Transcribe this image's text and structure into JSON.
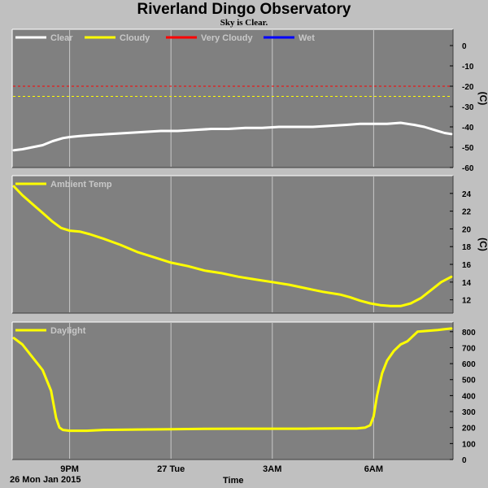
{
  "header": {
    "title": "Riverland Dingo Observatory",
    "subtitle": "Sky is Clear."
  },
  "footer": {
    "date_label": "26 Mon Jan 2015",
    "time_axis_label": "Time"
  },
  "colors": {
    "panel_bg": "#808080",
    "grid": "#c8c8c8",
    "clear": "#ffffff",
    "cloudy": "#ffff00",
    "very_cloudy": "#ff0000",
    "wet": "#0000ff"
  },
  "chart_data": [
    {
      "type": "line",
      "panel": "sky",
      "legend": [
        "Clear",
        "Cloudy",
        "Very Cloudy",
        "Wet"
      ],
      "ylabel": "(C)",
      "ylim": [
        -60,
        8
      ],
      "yticks": [
        0,
        -10,
        -20,
        -30,
        -40,
        -50,
        -60
      ],
      "xlim": [
        19.3,
        32.35
      ],
      "x_gridlines": [
        21,
        24,
        27,
        30
      ],
      "thresholds": [
        {
          "name": "Very Cloudy",
          "value": -20
        },
        {
          "name": "Cloudy",
          "value": -25
        }
      ],
      "series": [
        {
          "name": "Clear",
          "x": [
            19.35,
            19.6,
            19.9,
            20.2,
            20.5,
            20.8,
            21.0,
            21.3,
            21.7,
            22.2,
            22.7,
            23.2,
            23.7,
            24.2,
            24.7,
            25.2,
            25.7,
            26.2,
            26.7,
            27.2,
            27.7,
            28.2,
            28.7,
            29.2,
            29.6,
            30.0,
            30.4,
            30.8,
            31.2,
            31.5,
            31.8,
            32.1,
            32.3
          ],
          "y": [
            -51.5,
            -51,
            -50,
            -49,
            -47,
            -45.5,
            -45,
            -44.5,
            -44,
            -43.5,
            -43,
            -42.5,
            -42,
            -42,
            -41.5,
            -41,
            -41,
            -40.5,
            -40.5,
            -40,
            -40,
            -40,
            -39.5,
            -39,
            -38.5,
            -38.5,
            -38.5,
            -38,
            -39,
            -40,
            -41.5,
            -43,
            -43.5
          ]
        }
      ]
    },
    {
      "type": "line",
      "panel": "ambient",
      "legend": [
        "Ambient Temp"
      ],
      "ylabel": "(C)",
      "ylim": [
        10.5,
        26
      ],
      "yticks": [
        24,
        22,
        20,
        18,
        16,
        14,
        12
      ],
      "xlim": [
        19.3,
        32.35
      ],
      "x_gridlines": [
        21,
        24,
        27,
        30
      ],
      "series": [
        {
          "name": "Ambient Temp",
          "x": [
            19.35,
            19.6,
            19.9,
            20.2,
            20.5,
            20.75,
            21.0,
            21.3,
            21.6,
            22.0,
            22.5,
            23.0,
            23.5,
            24.0,
            24.5,
            25.0,
            25.5,
            26.0,
            26.5,
            27.0,
            27.5,
            28.0,
            28.5,
            29.0,
            29.3,
            29.6,
            29.9,
            30.2,
            30.5,
            30.8,
            31.1,
            31.4,
            31.7,
            32.0,
            32.3
          ],
          "y": [
            24.8,
            23.8,
            22.8,
            21.8,
            20.8,
            20.1,
            19.8,
            19.7,
            19.4,
            18.9,
            18.2,
            17.4,
            16.8,
            16.2,
            15.8,
            15.3,
            15.0,
            14.6,
            14.3,
            14.0,
            13.7,
            13.3,
            12.9,
            12.6,
            12.3,
            11.9,
            11.6,
            11.4,
            11.3,
            11.3,
            11.6,
            12.2,
            13.1,
            14.0,
            14.6
          ]
        }
      ]
    },
    {
      "type": "line",
      "panel": "daylight",
      "legend": [
        "Daylight"
      ],
      "ylim": [
        0,
        860
      ],
      "yticks": [
        800,
        700,
        600,
        500,
        400,
        300,
        200,
        100,
        0
      ],
      "xlim": [
        19.3,
        32.35
      ],
      "x_gridlines": [
        21,
        24,
        27,
        30
      ],
      "xticks": [
        {
          "value": 21,
          "label": "9PM"
        },
        {
          "value": 24,
          "label": "27 Tue"
        },
        {
          "value": 27,
          "label": "3AM"
        },
        {
          "value": 30,
          "label": "6AM"
        }
      ],
      "series": [
        {
          "name": "Daylight",
          "x": [
            19.35,
            19.6,
            19.9,
            20.2,
            20.45,
            20.6,
            20.7,
            20.8,
            21.0,
            21.5,
            22.0,
            23.0,
            24.0,
            25.0,
            26.0,
            27.0,
            28.0,
            29.0,
            29.5,
            29.75,
            29.9,
            30.0,
            30.1,
            30.25,
            30.4,
            30.6,
            30.8,
            31.0,
            31.1,
            31.3,
            31.6,
            31.9,
            32.1,
            32.3
          ],
          "y": [
            760,
            720,
            640,
            560,
            430,
            260,
            200,
            185,
            180,
            180,
            185,
            188,
            190,
            192,
            193,
            193,
            193,
            195,
            195,
            200,
            215,
            270,
            400,
            540,
            620,
            680,
            720,
            740,
            760,
            800,
            805,
            810,
            815,
            820
          ]
        }
      ]
    }
  ]
}
